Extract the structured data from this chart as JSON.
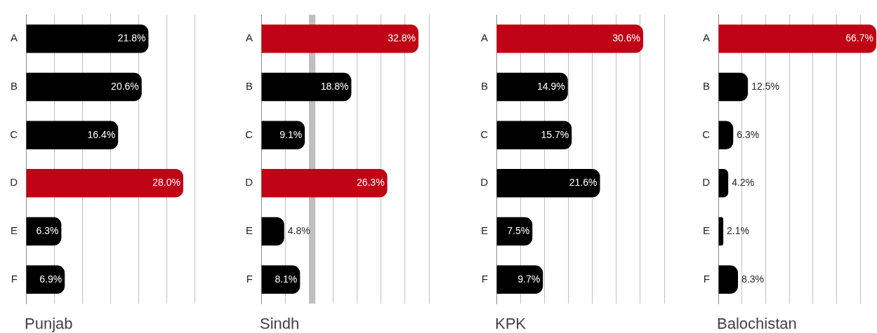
{
  "chart_data": [
    {
      "type": "bar",
      "orientation": "horizontal",
      "title": "Punjab",
      "categories": [
        "A",
        "B",
        "C",
        "D",
        "E",
        "F"
      ],
      "values": [
        21.8,
        20.6,
        16.4,
        28.0,
        6.3,
        6.9
      ],
      "value_labels": [
        "21.8%",
        "20.6%",
        "16.4%",
        "28.0%",
        "6.3%",
        "6.9%"
      ],
      "colors": [
        "#000000",
        "#000000",
        "#000000",
        "#c00415",
        "#000000",
        "#000000"
      ],
      "xlim": [
        0,
        30
      ],
      "xticks": [
        {
          "value": 0,
          "label": null
        },
        {
          "value": 5,
          "label": null
        },
        {
          "value": 10,
          "label": null
        },
        {
          "value": 15,
          "label": null
        },
        {
          "value": 20,
          "label": null
        },
        {
          "value": 25,
          "label": null
        },
        {
          "value": 30,
          "label": null
        }
      ],
      "grid": "x",
      "tick_labels": "y"
    },
    {
      "type": "bar",
      "orientation": "horizontal",
      "title": "Sindh",
      "categories": [
        "A",
        "B",
        "C",
        "D",
        "E",
        "F"
      ],
      "values": [
        32.8,
        18.8,
        9.1,
        26.3,
        4.8,
        8.1
      ],
      "value_labels": [
        "32.8%",
        "18.8%",
        "9.1%",
        "26.3%",
        "4.8%",
        "8.1%"
      ],
      "colors": [
        "#c00415",
        "#000000",
        "#000000",
        "#c00415",
        "#000000",
        "#000000"
      ],
      "xlim": [
        0,
        35
      ],
      "xticks": [
        {
          "value": 0,
          "label": null
        },
        {
          "value": 5,
          "label": null
        },
        {
          "value": 10,
          "label": null
        },
        {
          "value": 15,
          "label": null
        },
        {
          "value": 20,
          "label": null
        },
        {
          "value": 25,
          "label": null
        },
        {
          "value": 30,
          "label": null
        },
        {
          "value": 35,
          "label": null
        }
      ],
      "grid": "x",
      "tick_labels": "y",
      "bands": [
        {
          "axis": "x",
          "from": 10,
          "to": 11.3,
          "color": "#bfbfbf"
        }
      ]
    },
    {
      "type": "bar",
      "orientation": "horizontal",
      "title": "KPK",
      "categories": [
        "A",
        "B",
        "C",
        "D",
        "E",
        "F"
      ],
      "values": [
        30.6,
        14.9,
        15.7,
        21.6,
        7.5,
        9.7
      ],
      "value_labels": [
        "30.6%",
        "14.9%",
        "15.7%",
        "21.6%",
        "7.5%",
        "9.7%"
      ],
      "colors": [
        "#c00415",
        "#000000",
        "#000000",
        "#000000",
        "#000000",
        "#000000"
      ],
      "xlim": [
        0,
        35
      ],
      "xticks": [
        {
          "value": 0,
          "label": null
        },
        {
          "value": 5,
          "label": null
        },
        {
          "value": 10,
          "label": null
        },
        {
          "value": 15,
          "label": null
        },
        {
          "value": 20,
          "label": null
        },
        {
          "value": 25,
          "label": null
        },
        {
          "value": 30,
          "label": null
        },
        {
          "value": 35,
          "label": null
        }
      ],
      "grid": "x",
      "tick_labels": "y"
    },
    {
      "type": "bar",
      "orientation": "horizontal",
      "title": "Balochistan",
      "categories": [
        "A",
        "B",
        "C",
        "D",
        "E",
        "F"
      ],
      "values": [
        66.7,
        12.5,
        6.3,
        4.2,
        2.1,
        8.3
      ],
      "value_labels": [
        "66.7%",
        "12.5%",
        "6.3%",
        "4.2%",
        "2.1%",
        "8.3%"
      ],
      "colors": [
        "#c00415",
        "#000000",
        "#000000",
        "#000000",
        "#000000",
        "#000000"
      ],
      "xlim": [
        0,
        67
      ],
      "xticks": [
        {
          "value": 0,
          "label": null
        },
        {
          "value": 10,
          "label": null
        },
        {
          "value": 20,
          "label": null
        },
        {
          "value": 30,
          "label": null
        },
        {
          "value": 40,
          "label": null
        },
        {
          "value": 50,
          "label": null
        },
        {
          "value": 60,
          "label": null
        }
      ],
      "grid": "x",
      "tick_labels": "y"
    }
  ]
}
